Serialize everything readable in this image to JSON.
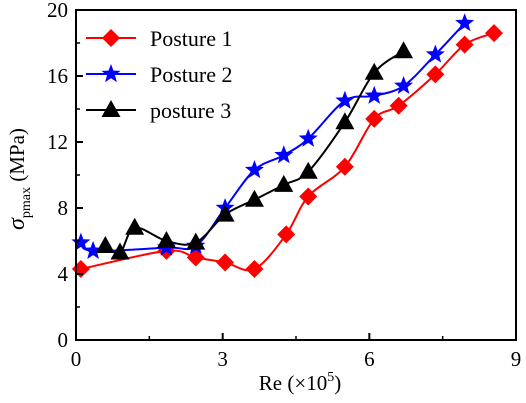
{
  "chart_data": {
    "type": "line",
    "xlabel": "Re (×10",
    "xlabel_sup": "5",
    "xlabel_close": ")",
    "ylabel_symbol": "σ",
    "ylabel_sub": "pmax",
    "ylabel_unit": " (MPa)",
    "xlim": [
      0,
      9
    ],
    "ylim": [
      0,
      20
    ],
    "xticks": [
      0,
      3,
      6,
      9
    ],
    "yticks": [
      0,
      4,
      8,
      12,
      16,
      20
    ],
    "xtick_labels": [
      "0",
      "3",
      "6",
      "9"
    ],
    "ytick_labels": [
      "0",
      "4",
      "8",
      "12",
      "16",
      "20"
    ],
    "grid": false,
    "legend_position": "top-left",
    "series": [
      {
        "name": "Posture 1",
        "color": "#ff0000",
        "marker": "diamond",
        "x": [
          0.1,
          1.85,
          2.45,
          3.05,
          3.65,
          4.3,
          4.75,
          5.5,
          6.1,
          6.6,
          7.35,
          7.95,
          8.55
        ],
        "y": [
          4.3,
          5.4,
          5.0,
          4.7,
          4.3,
          6.4,
          8.7,
          10.5,
          13.4,
          14.2,
          16.1,
          17.9,
          18.6
        ]
      },
      {
        "name": "Posture 2",
        "color": "#0000ff",
        "marker": "star",
        "x": [
          0.1,
          0.35,
          1.85,
          2.45,
          3.05,
          3.65,
          4.25,
          4.75,
          5.5,
          6.1,
          6.7,
          7.35,
          7.95
        ],
        "y": [
          5.9,
          5.4,
          5.6,
          5.7,
          8.0,
          10.3,
          11.2,
          12.2,
          14.5,
          14.8,
          15.4,
          17.3,
          19.2
        ]
      },
      {
        "name": "posture 3",
        "color": "#000000",
        "marker": "triangle",
        "x": [
          0.6,
          0.9,
          1.2,
          1.85,
          2.45,
          3.05,
          3.65,
          4.25,
          4.75,
          5.5,
          6.1,
          6.7
        ],
        "y": [
          5.7,
          5.3,
          6.8,
          6.0,
          5.9,
          7.6,
          8.5,
          9.4,
          10.2,
          13.2,
          16.2,
          17.5
        ]
      }
    ]
  }
}
